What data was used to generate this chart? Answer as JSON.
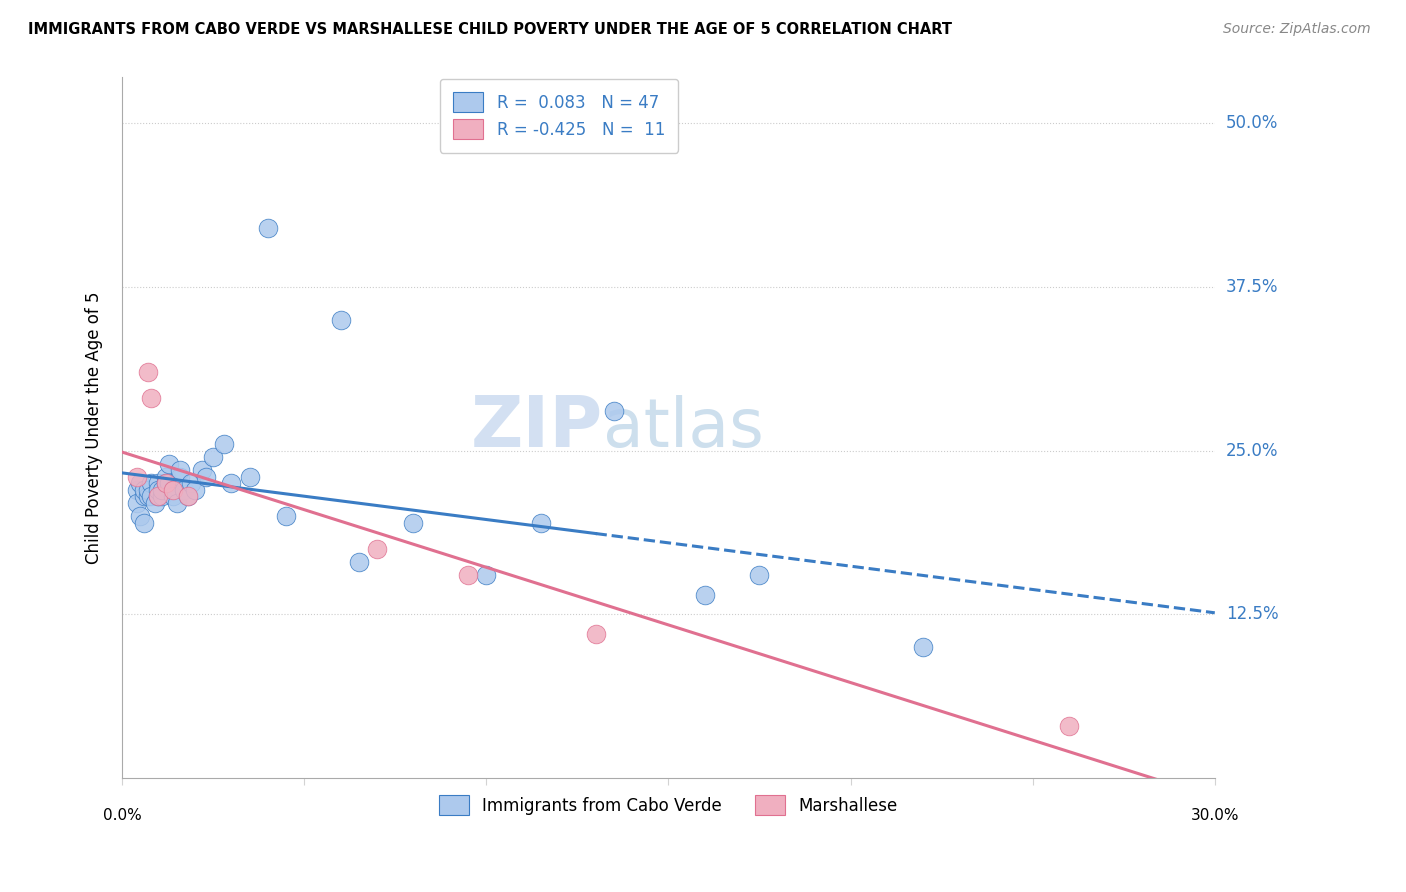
{
  "title": "IMMIGRANTS FROM CABO VERDE VS MARSHALLESE CHILD POVERTY UNDER THE AGE OF 5 CORRELATION CHART",
  "source": "Source: ZipAtlas.com",
  "ylabel": "Child Poverty Under the Age of 5",
  "y_ticks": [
    "12.5%",
    "25.0%",
    "37.5%",
    "50.0%"
  ],
  "y_tick_values": [
    0.125,
    0.25,
    0.375,
    0.5
  ],
  "xlim": [
    0.0,
    0.3
  ],
  "ylim": [
    0.0,
    0.535
  ],
  "legend_label1": "Immigrants from Cabo Verde",
  "legend_label2": "Marshallese",
  "r1": "0.083",
  "n1": "47",
  "r2": "-0.425",
  "n2": "11",
  "cabo_verde_color": "#adc9ed",
  "marshallese_color": "#f0afc0",
  "cabo_verde_line_color": "#3a7cc4",
  "marshallese_line_color": "#e07090",
  "watermark_zip": "ZIP",
  "watermark_atlas": "atlas",
  "cabo_verde_x": [
    0.004,
    0.004,
    0.005,
    0.005,
    0.006,
    0.006,
    0.006,
    0.007,
    0.007,
    0.008,
    0.008,
    0.009,
    0.01,
    0.01,
    0.01,
    0.011,
    0.011,
    0.012,
    0.012,
    0.013,
    0.013,
    0.014,
    0.014,
    0.015,
    0.016,
    0.016,
    0.017,
    0.018,
    0.019,
    0.02,
    0.022,
    0.023,
    0.025,
    0.028,
    0.03,
    0.035,
    0.04,
    0.045,
    0.06,
    0.065,
    0.08,
    0.1,
    0.115,
    0.135,
    0.16,
    0.175,
    0.22
  ],
  "cabo_verde_y": [
    0.22,
    0.21,
    0.225,
    0.2,
    0.195,
    0.215,
    0.22,
    0.215,
    0.22,
    0.225,
    0.215,
    0.21,
    0.225,
    0.215,
    0.22,
    0.215,
    0.22,
    0.23,
    0.225,
    0.225,
    0.24,
    0.22,
    0.215,
    0.21,
    0.23,
    0.235,
    0.22,
    0.215,
    0.225,
    0.22,
    0.235,
    0.23,
    0.245,
    0.255,
    0.225,
    0.23,
    0.42,
    0.2,
    0.35,
    0.165,
    0.195,
    0.155,
    0.195,
    0.28,
    0.14,
    0.155,
    0.1
  ],
  "marshallese_x": [
    0.004,
    0.007,
    0.008,
    0.01,
    0.012,
    0.014,
    0.018,
    0.07,
    0.095,
    0.13,
    0.26
  ],
  "marshallese_y": [
    0.23,
    0.31,
    0.29,
    0.215,
    0.225,
    0.22,
    0.215,
    0.175,
    0.155,
    0.11,
    0.04
  ]
}
